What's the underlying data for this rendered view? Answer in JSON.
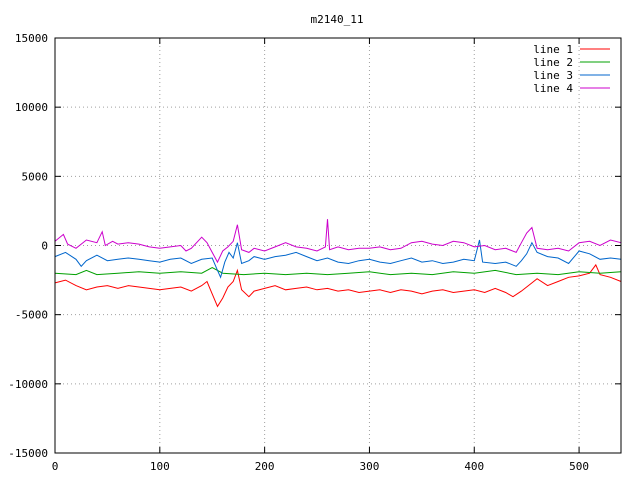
{
  "chart_data": {
    "type": "line",
    "title": "m2140_11",
    "xlabel": "",
    "ylabel": "",
    "xlim": [
      0,
      540
    ],
    "ylim": [
      -15000,
      15000
    ],
    "x_ticks": [
      0,
      100,
      200,
      300,
      400,
      500
    ],
    "y_ticks": [
      -15000,
      -10000,
      -5000,
      0,
      5000,
      10000,
      15000
    ],
    "grid": true,
    "legend_position": "top-right",
    "series": [
      {
        "name": "line 1",
        "color": "#ff0000",
        "points": [
          [
            0,
            -2700
          ],
          [
            10,
            -2500
          ],
          [
            20,
            -2900
          ],
          [
            30,
            -3200
          ],
          [
            40,
            -3000
          ],
          [
            50,
            -2900
          ],
          [
            60,
            -3100
          ],
          [
            70,
            -2900
          ],
          [
            80,
            -3000
          ],
          [
            90,
            -3100
          ],
          [
            100,
            -3200
          ],
          [
            110,
            -3100
          ],
          [
            120,
            -3000
          ],
          [
            130,
            -3300
          ],
          [
            140,
            -2900
          ],
          [
            145,
            -2600
          ],
          [
            150,
            -3500
          ],
          [
            155,
            -4400
          ],
          [
            160,
            -3800
          ],
          [
            165,
            -3000
          ],
          [
            170,
            -2600
          ],
          [
            174,
            -1800
          ],
          [
            178,
            -3200
          ],
          [
            185,
            -3700
          ],
          [
            190,
            -3300
          ],
          [
            200,
            -3100
          ],
          [
            210,
            -2900
          ],
          [
            220,
            -3200
          ],
          [
            230,
            -3100
          ],
          [
            240,
            -3000
          ],
          [
            250,
            -3200
          ],
          [
            260,
            -3100
          ],
          [
            270,
            -3300
          ],
          [
            280,
            -3200
          ],
          [
            290,
            -3400
          ],
          [
            300,
            -3300
          ],
          [
            310,
            -3200
          ],
          [
            320,
            -3400
          ],
          [
            330,
            -3200
          ],
          [
            340,
            -3300
          ],
          [
            350,
            -3500
          ],
          [
            360,
            -3300
          ],
          [
            370,
            -3200
          ],
          [
            380,
            -3400
          ],
          [
            390,
            -3300
          ],
          [
            400,
            -3200
          ],
          [
            410,
            -3400
          ],
          [
            420,
            -3100
          ],
          [
            430,
            -3400
          ],
          [
            437,
            -3700
          ],
          [
            445,
            -3300
          ],
          [
            455,
            -2700
          ],
          [
            460,
            -2400
          ],
          [
            470,
            -2900
          ],
          [
            480,
            -2600
          ],
          [
            490,
            -2300
          ],
          [
            500,
            -2200
          ],
          [
            510,
            -2000
          ],
          [
            516,
            -1400
          ],
          [
            520,
            -2100
          ],
          [
            530,
            -2300
          ],
          [
            540,
            -2600
          ]
        ]
      },
      {
        "name": "line 2",
        "color": "#00a000",
        "points": [
          [
            0,
            -2000
          ],
          [
            20,
            -2100
          ],
          [
            30,
            -1800
          ],
          [
            40,
            -2100
          ],
          [
            60,
            -2000
          ],
          [
            80,
            -1900
          ],
          [
            100,
            -2000
          ],
          [
            120,
            -1900
          ],
          [
            140,
            -2000
          ],
          [
            150,
            -1600
          ],
          [
            160,
            -2000
          ],
          [
            180,
            -2100
          ],
          [
            200,
            -2000
          ],
          [
            220,
            -2100
          ],
          [
            240,
            -2000
          ],
          [
            260,
            -2100
          ],
          [
            280,
            -2000
          ],
          [
            300,
            -1900
          ],
          [
            320,
            -2100
          ],
          [
            340,
            -2000
          ],
          [
            360,
            -2100
          ],
          [
            380,
            -1900
          ],
          [
            400,
            -2000
          ],
          [
            420,
            -1800
          ],
          [
            440,
            -2100
          ],
          [
            460,
            -2000
          ],
          [
            480,
            -2100
          ],
          [
            500,
            -1900
          ],
          [
            520,
            -2000
          ],
          [
            540,
            -1900
          ]
        ]
      },
      {
        "name": "line 3",
        "color": "#0066cc",
        "points": [
          [
            0,
            -800
          ],
          [
            10,
            -500
          ],
          [
            20,
            -1000
          ],
          [
            25,
            -1500
          ],
          [
            30,
            -1100
          ],
          [
            40,
            -700
          ],
          [
            50,
            -1100
          ],
          [
            60,
            -1000
          ],
          [
            70,
            -900
          ],
          [
            80,
            -1000
          ],
          [
            90,
            -1100
          ],
          [
            100,
            -1200
          ],
          [
            110,
            -1000
          ],
          [
            120,
            -900
          ],
          [
            130,
            -1300
          ],
          [
            140,
            -1000
          ],
          [
            150,
            -900
          ],
          [
            155,
            -1800
          ],
          [
            158,
            -2300
          ],
          [
            162,
            -1200
          ],
          [
            166,
            -500
          ],
          [
            170,
            -900
          ],
          [
            174,
            200
          ],
          [
            178,
            -1300
          ],
          [
            185,
            -1100
          ],
          [
            190,
            -800
          ],
          [
            200,
            -1000
          ],
          [
            210,
            -800
          ],
          [
            220,
            -700
          ],
          [
            230,
            -500
          ],
          [
            240,
            -800
          ],
          [
            250,
            -1100
          ],
          [
            260,
            -900
          ],
          [
            270,
            -1200
          ],
          [
            280,
            -1300
          ],
          [
            290,
            -1100
          ],
          [
            300,
            -1000
          ],
          [
            310,
            -1200
          ],
          [
            320,
            -1300
          ],
          [
            330,
            -1100
          ],
          [
            340,
            -900
          ],
          [
            350,
            -1200
          ],
          [
            360,
            -1100
          ],
          [
            370,
            -1300
          ],
          [
            380,
            -1200
          ],
          [
            390,
            -1000
          ],
          [
            400,
            -1100
          ],
          [
            405,
            400
          ],
          [
            408,
            -1200
          ],
          [
            420,
            -1300
          ],
          [
            430,
            -1200
          ],
          [
            440,
            -1500
          ],
          [
            445,
            -1100
          ],
          [
            450,
            -600
          ],
          [
            455,
            200
          ],
          [
            460,
            -500
          ],
          [
            470,
            -800
          ],
          [
            480,
            -900
          ],
          [
            490,
            -1300
          ],
          [
            500,
            -400
          ],
          [
            510,
            -600
          ],
          [
            520,
            -1000
          ],
          [
            530,
            -900
          ],
          [
            540,
            -1000
          ]
        ]
      },
      {
        "name": "line 4",
        "color": "#cc00cc",
        "points": [
          [
            0,
            300
          ],
          [
            8,
            800
          ],
          [
            12,
            100
          ],
          [
            20,
            -200
          ],
          [
            30,
            400
          ],
          [
            40,
            200
          ],
          [
            45,
            1000
          ],
          [
            48,
            0
          ],
          [
            55,
            300
          ],
          [
            60,
            100
          ],
          [
            70,
            200
          ],
          [
            80,
            100
          ],
          [
            90,
            -100
          ],
          [
            100,
            -200
          ],
          [
            110,
            -100
          ],
          [
            120,
            0
          ],
          [
            125,
            -400
          ],
          [
            130,
            -200
          ],
          [
            140,
            600
          ],
          [
            145,
            200
          ],
          [
            150,
            -500
          ],
          [
            155,
            -1200
          ],
          [
            160,
            -400
          ],
          [
            165,
            -100
          ],
          [
            170,
            300
          ],
          [
            174,
            1500
          ],
          [
            178,
            -300
          ],
          [
            185,
            -500
          ],
          [
            190,
            -200
          ],
          [
            200,
            -400
          ],
          [
            210,
            -100
          ],
          [
            220,
            200
          ],
          [
            230,
            -100
          ],
          [
            240,
            -200
          ],
          [
            250,
            -400
          ],
          [
            258,
            -100
          ],
          [
            260,
            1900
          ],
          [
            262,
            -300
          ],
          [
            270,
            -100
          ],
          [
            280,
            -300
          ],
          [
            290,
            -200
          ],
          [
            300,
            -200
          ],
          [
            310,
            -100
          ],
          [
            320,
            -300
          ],
          [
            330,
            -200
          ],
          [
            340,
            200
          ],
          [
            350,
            300
          ],
          [
            360,
            100
          ],
          [
            370,
            0
          ],
          [
            380,
            300
          ],
          [
            390,
            200
          ],
          [
            400,
            -100
          ],
          [
            410,
            0
          ],
          [
            420,
            -300
          ],
          [
            430,
            -200
          ],
          [
            440,
            -500
          ],
          [
            445,
            200
          ],
          [
            450,
            900
          ],
          [
            455,
            1300
          ],
          [
            460,
            -200
          ],
          [
            470,
            -300
          ],
          [
            480,
            -200
          ],
          [
            490,
            -400
          ],
          [
            500,
            200
          ],
          [
            510,
            300
          ],
          [
            520,
            0
          ],
          [
            530,
            400
          ],
          [
            540,
            200
          ]
        ]
      }
    ]
  }
}
